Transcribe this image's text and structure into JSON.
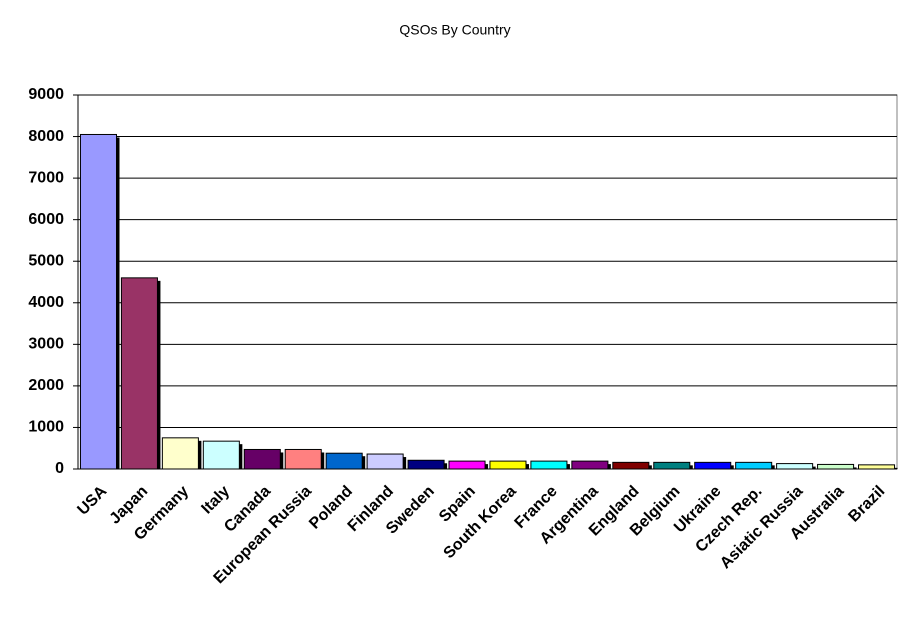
{
  "chart_data": {
    "type": "bar",
    "title": "QSOs By Country",
    "categories": [
      "USA",
      "Japan",
      "Germany",
      "Italy",
      "Canada",
      "European Russia",
      "Poland",
      "Finland",
      "Sweden",
      "Spain",
      "South Korea",
      "France",
      "Argentina",
      "England",
      "Belgium",
      "Ukraine",
      "Czech Rep.",
      "Asiatic Russia",
      "Australia",
      "Brazil"
    ],
    "values": [
      8050,
      4600,
      750,
      670,
      470,
      470,
      380,
      360,
      210,
      190,
      190,
      190,
      190,
      160,
      160,
      160,
      160,
      130,
      110,
      100
    ],
    "colors": [
      "#9999ff",
      "#993366",
      "#ffffcc",
      "#ccffff",
      "#660066",
      "#ff8080",
      "#0066cc",
      "#ccccff",
      "#000080",
      "#ff00ff",
      "#ffff00",
      "#00ffff",
      "#800080",
      "#800000",
      "#008080",
      "#0000ff",
      "#00ccff",
      "#ccffff",
      "#ccffcc",
      "#ffff99"
    ],
    "ylim": [
      0,
      9000
    ],
    "yticks": [
      0,
      1000,
      2000,
      3000,
      4000,
      5000,
      6000,
      7000,
      8000,
      9000
    ],
    "grid": true
  }
}
